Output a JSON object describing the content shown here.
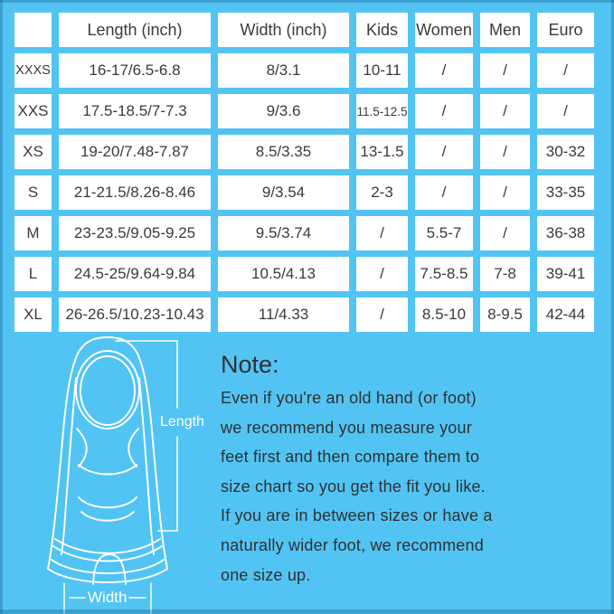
{
  "colors": {
    "bg": "#52C4F4",
    "cell-bg": "#FFFFFF",
    "table-text": "#3A3A3A",
    "note-text": "#303030",
    "line": "#FFFFFF",
    "edge-shade": "rgba(23,94,134,0.35)"
  },
  "chart_data": {
    "type": "table",
    "columns": [
      "",
      "Length (inch)",
      "Width (inch)",
      "Kids",
      "Women",
      "Men",
      "Euro"
    ],
    "rows": [
      [
        "XXXS",
        "16-17/6.5-6.8",
        "8/3.1",
        "10-11",
        "/",
        "/",
        "/"
      ],
      [
        "XXS",
        "17.5-18.5/7-7.3",
        "9/3.6",
        "11.5-12.5",
        "/",
        "/",
        "/"
      ],
      [
        "XS",
        "19-20/7.48-7.87",
        "8.5/3.35",
        "13-1.5",
        "/",
        "/",
        "30-32"
      ],
      [
        "S",
        "21-21.5/8.26-8.46",
        "9/3.54",
        "2-3",
        "/",
        "/",
        "33-35"
      ],
      [
        "M",
        "23-23.5/9.05-9.25",
        "9.5/3.74",
        "/",
        "5.5-7",
        "/",
        "36-38"
      ],
      [
        "L",
        "24.5-25/9.64-9.84",
        "10.5/4.13",
        "/",
        "7.5-8.5",
        "7-8",
        "39-41"
      ],
      [
        "XL",
        "26-26.5/10.23-10.43",
        "11/4.33",
        "/",
        "8.5-10",
        "8-9.5",
        "42-44"
      ]
    ]
  },
  "diagram": {
    "length_label": "Length",
    "width_label": "Width"
  },
  "note": {
    "heading": "Note:",
    "lines": [
      "Even if you're an old hand (or foot)",
      "we recommend you measure your",
      "feet first and then compare them to",
      "size chart so you get the fit you like.",
      "If you are in between sizes or have a",
      "naturally wider foot, we recommend",
      "one size up."
    ]
  }
}
